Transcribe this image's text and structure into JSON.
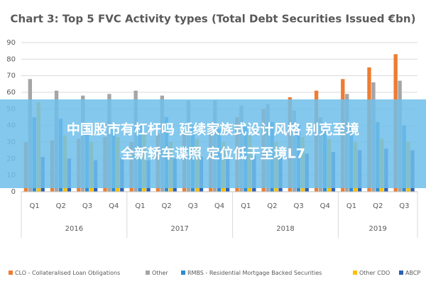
{
  "chart_data": {
    "type": "bar",
    "title": "Chart 3: Top 5 FVC Activity types (Total Debt Securities Issued €bn)",
    "year_groups": [
      {
        "label": "2016",
        "categories": [
          "Q1",
          "Q2",
          "Q3",
          "Q4"
        ]
      },
      {
        "label": "2017",
        "categories": [
          "Q1",
          "Q2",
          "Q3",
          "Q4"
        ]
      },
      {
        "label": "2018",
        "categories": [
          "Q1",
          "Q2",
          "Q3",
          "Q4"
        ]
      },
      {
        "label": "2019",
        "categories": [
          "Q1",
          "Q2",
          "Q3"
        ]
      }
    ],
    "series": [
      {
        "name": "CLO - Collateralised Loan Obligations",
        "color": "#ed7d31",
        "values": [
          30,
          31,
          32,
          33,
          30,
          35,
          38,
          40,
          45,
          50,
          57,
          61,
          68,
          75,
          83
        ]
      },
      {
        "name": "Other",
        "color": "#a5a5a5",
        "values": [
          68,
          61,
          58,
          59,
          61,
          58,
          55,
          55,
          52,
          53,
          49,
          45,
          59,
          66,
          67
        ]
      },
      {
        "name": "RMBS - Residential Mortgage Backed Securities",
        "color": "#2e8bd0",
        "values": [
          45,
          44,
          35,
          38,
          40,
          45,
          40,
          38,
          40,
          42,
          40,
          38,
          40,
          42,
          40
        ]
      },
      {
        "name": "Other CDO",
        "color": "#ffc000",
        "values": [
          54,
          34,
          30,
          33,
          35,
          30,
          32,
          30,
          34,
          30,
          33,
          32,
          30,
          32,
          30
        ]
      },
      {
        "name": "ABCP",
        "color": "#2f5fb3",
        "values": [
          21,
          20,
          19,
          20,
          19,
          20,
          21,
          20,
          22,
          22,
          23,
          24,
          25,
          26,
          25
        ]
      }
    ],
    "ylim": [
      0,
      90
    ],
    "yticks": [
      0,
      10,
      20,
      30,
      40,
      50,
      60,
      70,
      80,
      90
    ],
    "grid": true
  },
  "overlay": {
    "lines": [
      "中国股市有杠杆吗 延续家族式设计风格 别克至境",
      "全新轿车谍照 定位低于至境L7"
    ]
  }
}
